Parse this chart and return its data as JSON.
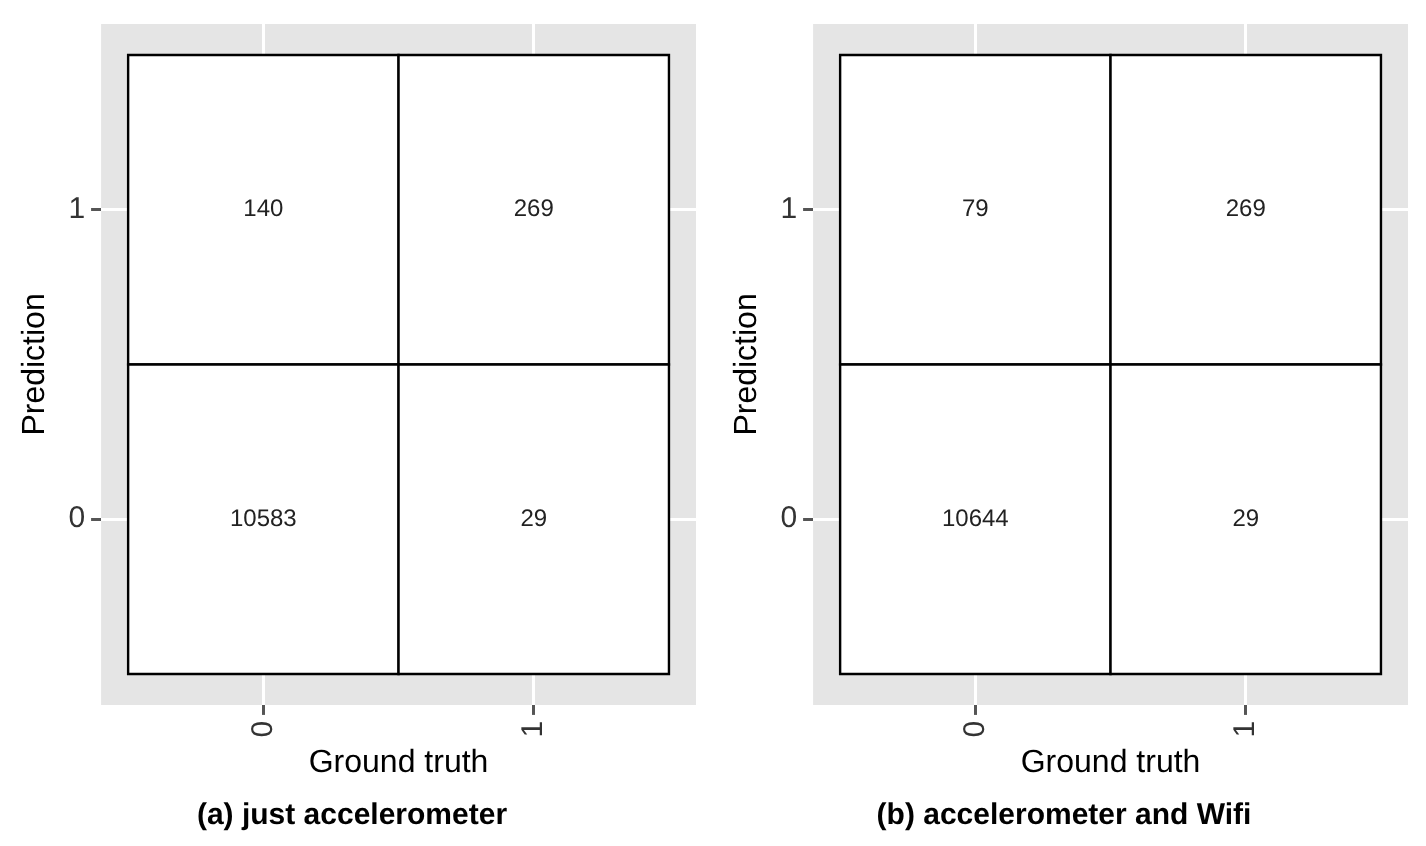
{
  "chart_data": [
    {
      "type": "heatmap",
      "title": "(a) just accelerometer",
      "xlabel": "Ground truth",
      "ylabel": "Prediction",
      "categories": [
        "0",
        "1"
      ],
      "y_categories": [
        "1",
        "0"
      ],
      "cells": [
        [
          140,
          269
        ],
        [
          10583,
          29
        ]
      ],
      "data_labels": true,
      "grid": true
    },
    {
      "type": "heatmap",
      "title": "(b) accelerometer and Wifi",
      "xlabel": "Ground truth",
      "ylabel": "Prediction",
      "categories": [
        "0",
        "1"
      ],
      "y_categories": [
        "1",
        "0"
      ],
      "cells": [
        [
          79,
          269
        ],
        [
          10644,
          29
        ]
      ],
      "data_labels": true,
      "grid": true
    }
  ]
}
